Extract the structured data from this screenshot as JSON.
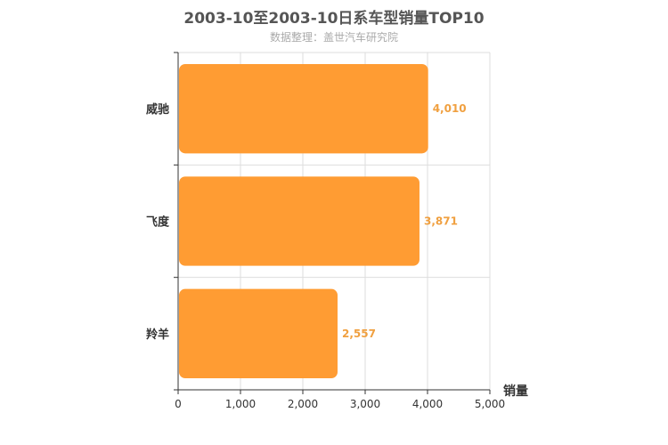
{
  "chart_data": {
    "type": "bar",
    "orientation": "horizontal",
    "title": "2003-10至2003-10日系车型销量TOP10",
    "subtitle": "数据整理：盖世汽车研究院",
    "categories": [
      "威驰",
      "飞度",
      "羚羊"
    ],
    "values": [
      4010,
      3871,
      2557
    ],
    "value_labels": [
      "4,010",
      "3,871",
      "2,557"
    ],
    "xlabel": "销量",
    "ylabel": "",
    "xlim": [
      0,
      5000
    ],
    "xticks": [
      0,
      1000,
      2000,
      3000,
      4000,
      5000
    ],
    "xtick_labels": [
      "0",
      "1,000",
      "2,000",
      "3,000",
      "4,000",
      "5,000"
    ],
    "grid": true,
    "bar_color": "#ff9c33",
    "label_color": "#f0a040"
  }
}
